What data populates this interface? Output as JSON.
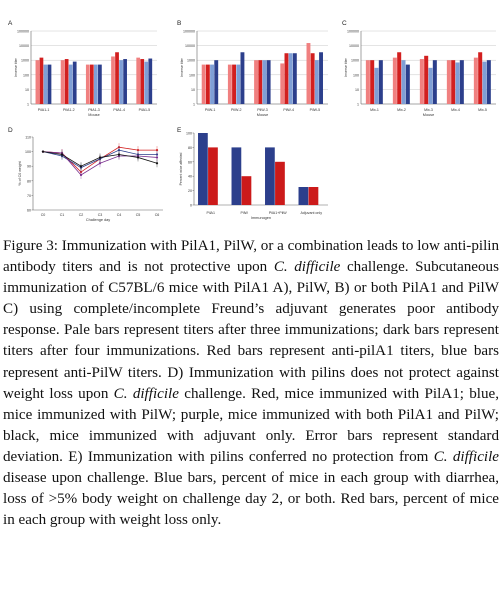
{
  "figure": {
    "panels": [
      {
        "id": "A",
        "label": "A"
      },
      {
        "id": "B",
        "label": "B"
      },
      {
        "id": "C",
        "label": "C"
      },
      {
        "id": "D",
        "label": "D"
      },
      {
        "id": "E",
        "label": "E"
      }
    ]
  },
  "chart_data": [
    {
      "type": "bar",
      "panel": "A",
      "ylabel": "Inverse titer",
      "xlabel": "Mouse",
      "scale": "log",
      "ylim": [
        1,
        100000
      ],
      "yticks": [
        "1",
        "10",
        "100",
        "1000",
        "10000",
        "100000"
      ],
      "categories": [
        "PilA1-1",
        "PilA1-2",
        "PilA1-3",
        "PilA1-4",
        "PilA1-5"
      ],
      "series": [
        {
          "color": "#f08080",
          "values": [
            1000,
            1000,
            500,
            1800,
            1500
          ]
        },
        {
          "color": "#d21f1f",
          "values": [
            1500,
            1200,
            500,
            3500,
            1200
          ]
        },
        {
          "color": "#7f9fd6",
          "values": [
            500,
            500,
            500,
            1000,
            800
          ]
        },
        {
          "color": "#2c3f8c",
          "values": [
            500,
            800,
            500,
            1200,
            1300
          ]
        }
      ]
    },
    {
      "type": "bar",
      "panel": "B",
      "ylabel": "Inverse titer",
      "xlabel": "Mouse",
      "scale": "log",
      "ylim": [
        1,
        100000
      ],
      "yticks": [
        "1",
        "10",
        "100",
        "1000",
        "10000",
        "100000"
      ],
      "categories": [
        "PilW-1",
        "PilW-2",
        "PilW-3",
        "PilW-4",
        "PilW-5"
      ],
      "series": [
        {
          "color": "#f08080",
          "values": [
            500,
            500,
            1000,
            600,
            15000
          ]
        },
        {
          "color": "#d21f1f",
          "values": [
            500,
            500,
            1000,
            3000,
            3000
          ]
        },
        {
          "color": "#7f9fd6",
          "values": [
            500,
            500,
            1000,
            3000,
            1000
          ]
        },
        {
          "color": "#2c3f8c",
          "values": [
            1000,
            3500,
            1000,
            3000,
            3500
          ]
        }
      ]
    },
    {
      "type": "bar",
      "panel": "C",
      "ylabel": "Inverse titer",
      "xlabel": "Mouse",
      "scale": "log",
      "ylim": [
        1,
        100000
      ],
      "yticks": [
        "1",
        "10",
        "100",
        "1000",
        "10000",
        "100000"
      ],
      "categories": [
        "Mix-1",
        "Mix-2",
        "Mix-3",
        "Mix-4",
        "Mix-5"
      ],
      "series": [
        {
          "color": "#f08080",
          "values": [
            1000,
            1500,
            1200,
            1000,
            1500
          ]
        },
        {
          "color": "#d21f1f",
          "values": [
            1000,
            3500,
            2000,
            1000,
            3500
          ]
        },
        {
          "color": "#7f9fd6",
          "values": [
            300,
            1000,
            300,
            700,
            800
          ]
        },
        {
          "color": "#2c3f8c",
          "values": [
            1000,
            500,
            1000,
            1000,
            1000
          ]
        }
      ]
    },
    {
      "type": "line",
      "panel": "D",
      "ylabel": "% of C0 weight",
      "xlabel": "Challenge day",
      "ylim": [
        60,
        110
      ],
      "yticks": [
        "60",
        "70",
        "80",
        "90",
        "100",
        "110"
      ],
      "x": [
        "C0",
        "C1",
        "C2",
        "C3",
        "C4",
        "C5",
        "C6"
      ],
      "series": [
        {
          "color": "#d21f1f",
          "values": [
            100,
            99,
            86,
            95,
            103,
            101,
            101
          ]
        },
        {
          "color": "#2c3f8c",
          "values": [
            100,
            97,
            89,
            95,
            101,
            98,
            98
          ]
        },
        {
          "color": "#7a2f8f",
          "values": [
            100,
            99,
            84,
            92,
            97,
            97,
            96
          ]
        },
        {
          "color": "#111111",
          "values": [
            100,
            98,
            90,
            96,
            98,
            96,
            92
          ]
        }
      ]
    },
    {
      "type": "bar",
      "panel": "E",
      "ylabel": "Percent mice affected",
      "xlabel": "Immunogen",
      "ylim": [
        0,
        100
      ],
      "yticks": [
        "0",
        "20",
        "40",
        "60",
        "80",
        "100"
      ],
      "categories": [
        "PilA1",
        "PilW",
        "PilA1+PilW",
        "Adjuvant only"
      ],
      "series": [
        {
          "color": "#2c3f8c",
          "values": [
            100,
            80,
            80,
            25
          ]
        },
        {
          "color": "#cc1a1a",
          "values": [
            80,
            40,
            60,
            25
          ]
        }
      ]
    }
  ],
  "caption": {
    "label": "Figure 3:",
    "parts": [
      {
        "t": " Immunization with PilA1, PilW, or a combination leads to low anti-pilin antibody titers and is not protective upon ",
        "i": false
      },
      {
        "t": "C. difficile",
        "i": true
      },
      {
        "t": " challenge. Subcutaneous immunization of C57BL/6 mice with PilA1 A), PilW, B) or both PilA1 and PilW C) using complete/incomplete Freund’s adjuvant generates poor antibody response. Pale bars represent titers after three immunizations; dark bars represent titers after four immunizations. Red bars represent anti-pilA1 titers, blue bars represent anti-PilW titers. D) Immunization with pilins does not protect against weight loss upon ",
        "i": false
      },
      {
        "t": "C. difficile",
        "i": true
      },
      {
        "t": " challenge. Red, mice immunized with PilA1; blue, mice immunized with PilW; purple, mice immunized with both PilA1 and PilW; black, mice immunized with adjuvant only. Error bars represent standard deviation. E) Immunization with pilins conferred no protection from ",
        "i": false
      },
      {
        "t": "C. difficile",
        "i": true
      },
      {
        "t": " disease upon challenge. Blue bars, percent of mice in each group with diarrhea, loss of >5% body weight on challenge day 2, or both. Red bars, percent of mice in each group with weight loss only.",
        "i": false
      }
    ]
  }
}
